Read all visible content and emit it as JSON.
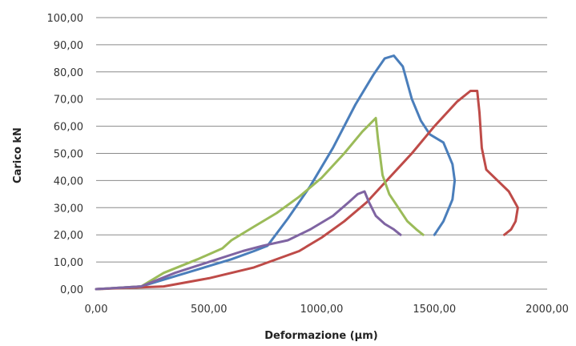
{
  "chart_data": {
    "type": "line",
    "title": "",
    "xlabel": "Deformazione (µm)",
    "ylabel": "Carico kN",
    "xlim": [
      0,
      2000
    ],
    "ylim": [
      0,
      100
    ],
    "x_ticks": [
      0,
      500,
      1000,
      1500,
      2000
    ],
    "y_ticks": [
      0,
      10,
      20,
      30,
      40,
      50,
      60,
      70,
      80,
      90,
      100
    ],
    "x_tick_labels": [
      "0,00",
      "500,00",
      "1000,00",
      "1500,00",
      "2000,00"
    ],
    "y_tick_labels": [
      "0,00",
      "10,00",
      "20,00",
      "30,00",
      "40,00",
      "50,00",
      "60,00",
      "70,00",
      "80,00",
      "90,00",
      "100,00"
    ],
    "grid": "horizontal",
    "legend": "none",
    "series": [
      {
        "color": "#4a7ebb",
        "points": [
          [
            0,
            0
          ],
          [
            200,
            1
          ],
          [
            400,
            6
          ],
          [
            600,
            11
          ],
          [
            700,
            14
          ],
          [
            760,
            16
          ],
          [
            850,
            26
          ],
          [
            950,
            38
          ],
          [
            1050,
            52
          ],
          [
            1150,
            68
          ],
          [
            1230,
            79
          ],
          [
            1280,
            85
          ],
          [
            1320,
            86
          ],
          [
            1360,
            82
          ],
          [
            1400,
            70
          ],
          [
            1440,
            62
          ],
          [
            1480,
            57
          ],
          [
            1540,
            54
          ],
          [
            1580,
            46
          ],
          [
            1590,
            40
          ],
          [
            1580,
            33
          ],
          [
            1540,
            25
          ],
          [
            1500,
            20
          ]
        ]
      },
      {
        "color": "#be4b48",
        "points": [
          [
            0,
            0
          ],
          [
            300,
            1
          ],
          [
            500,
            4
          ],
          [
            700,
            8
          ],
          [
            900,
            14
          ],
          [
            1000,
            19
          ],
          [
            1100,
            25
          ],
          [
            1200,
            32
          ],
          [
            1300,
            41
          ],
          [
            1400,
            50
          ],
          [
            1500,
            60
          ],
          [
            1600,
            69
          ],
          [
            1660,
            73
          ],
          [
            1690,
            73
          ],
          [
            1700,
            65
          ],
          [
            1710,
            52
          ],
          [
            1730,
            44
          ],
          [
            1780,
            40
          ],
          [
            1830,
            36
          ],
          [
            1870,
            30
          ],
          [
            1860,
            25
          ],
          [
            1840,
            22
          ],
          [
            1810,
            20
          ]
        ]
      },
      {
        "color": "#9bbb59",
        "points": [
          [
            0,
            0
          ],
          [
            200,
            1
          ],
          [
            300,
            6
          ],
          [
            450,
            11
          ],
          [
            560,
            15
          ],
          [
            600,
            18
          ],
          [
            700,
            23
          ],
          [
            800,
            28
          ],
          [
            900,
            34
          ],
          [
            1000,
            41
          ],
          [
            1100,
            50
          ],
          [
            1180,
            58
          ],
          [
            1240,
            63
          ],
          [
            1250,
            55
          ],
          [
            1270,
            42
          ],
          [
            1300,
            35
          ],
          [
            1340,
            30
          ],
          [
            1380,
            25
          ],
          [
            1420,
            22
          ],
          [
            1450,
            20
          ]
        ]
      },
      {
        "color": "#7f64a2",
        "points": [
          [
            0,
            0
          ],
          [
            200,
            1
          ],
          [
            350,
            6
          ],
          [
            500,
            10
          ],
          [
            650,
            14
          ],
          [
            740,
            16
          ],
          [
            850,
            18
          ],
          [
            950,
            22
          ],
          [
            1050,
            27
          ],
          [
            1120,
            32
          ],
          [
            1160,
            35
          ],
          [
            1190,
            36
          ],
          [
            1210,
            32
          ],
          [
            1240,
            27
          ],
          [
            1280,
            24
          ],
          [
            1320,
            22
          ],
          [
            1350,
            20
          ]
        ]
      }
    ]
  }
}
